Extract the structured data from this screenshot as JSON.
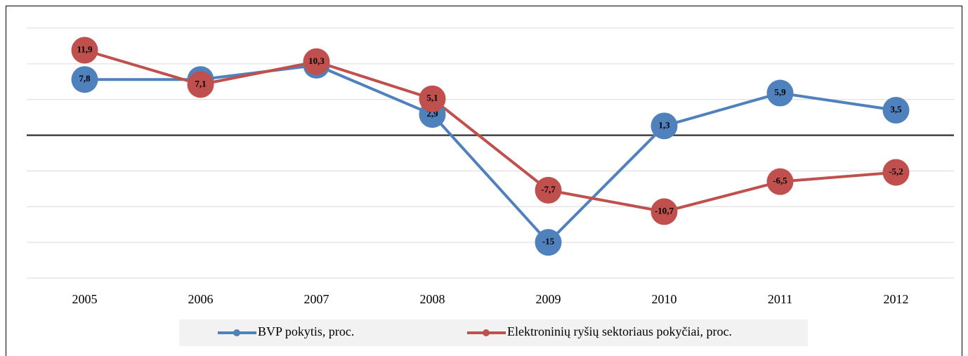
{
  "chart_data": {
    "type": "line",
    "categories": [
      "2005",
      "2006",
      "2007",
      "2008",
      "2009",
      "2010",
      "2011",
      "2012"
    ],
    "series": [
      {
        "name": "BVP pokytis, proc.",
        "color": "#4f81bd",
        "values": [
          7.8,
          7.8,
          9.8,
          2.9,
          -15,
          1.3,
          5.9,
          3.5
        ],
        "value_labels": [
          "7,8",
          "7,8",
          "9,8",
          "2,9",
          "-15",
          "1,3",
          "5,9",
          "3,5"
        ]
      },
      {
        "name": "Elektroninių ryšių sektoriaus pokyčiai, proc.",
        "color": "#c0504d",
        "values": [
          11.9,
          7.1,
          10.3,
          5.1,
          -7.7,
          -10.7,
          -6.5,
          -5.2
        ],
        "value_labels": [
          "11,9",
          "7,1",
          "10,3",
          "5,1",
          "-7,7",
          "-10,7",
          "-6,5",
          "-5,2"
        ]
      }
    ],
    "ylim": [
      -20,
      15
    ],
    "yticks": [
      -20,
      -15,
      -10,
      -5,
      0,
      5,
      10,
      15
    ],
    "grid": true,
    "legend": "bottom"
  }
}
